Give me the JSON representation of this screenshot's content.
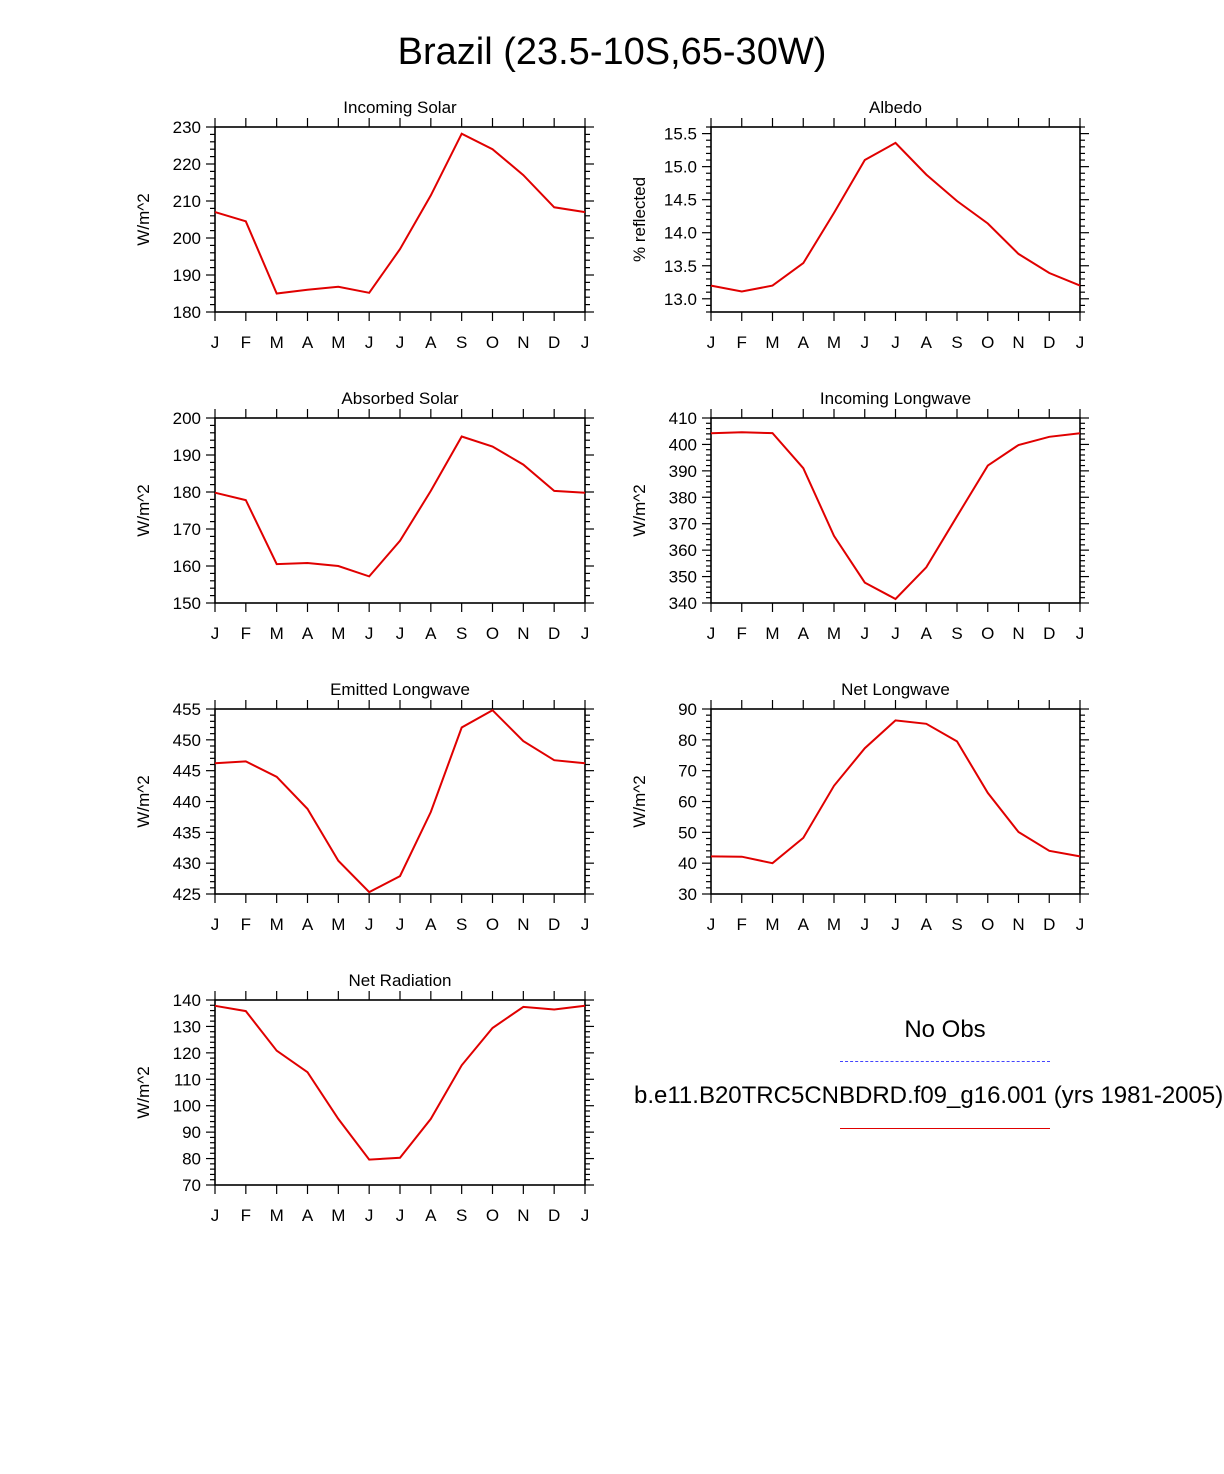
{
  "main_title": "Brazil (23.5-10S,65-30W)",
  "legend": {
    "obs_label": "No Obs",
    "obs_color": "#4444ff",
    "model_label": "b.e11.B20TRC5CNBDRD.f09_g16.001 (yrs 1981-2005)",
    "model_color": "#e00000"
  },
  "chart_data": [
    {
      "type": "line",
      "title": "Incoming Solar",
      "ylabel": "W/m^2",
      "categories": [
        "J",
        "F",
        "M",
        "A",
        "M",
        "J",
        "J",
        "A",
        "S",
        "O",
        "N",
        "D",
        "J"
      ],
      "ylim": [
        180,
        230
      ],
      "yticks": [
        "180",
        "190",
        "200",
        "210",
        "220",
        "230"
      ],
      "series": [
        {
          "values": [
            207,
            204.5,
            185,
            186,
            186.8,
            185.2,
            197,
            211.5,
            228.2,
            224,
            217,
            208.3,
            207
          ]
        }
      ]
    },
    {
      "type": "line",
      "title": "Albedo",
      "ylabel": "% reflected",
      "categories": [
        "J",
        "F",
        "M",
        "A",
        "M",
        "J",
        "J",
        "A",
        "S",
        "O",
        "N",
        "D",
        "J"
      ],
      "ylim": [
        12.8,
        15.6
      ],
      "yticks": [
        "13.0",
        "13.5",
        "14.0",
        "14.5",
        "15.0",
        "15.5"
      ],
      "series": [
        {
          "values": [
            13.2,
            13.11,
            13.2,
            13.54,
            14.3,
            15.1,
            15.36,
            14.88,
            14.48,
            14.14,
            13.68,
            13.39,
            13.2
          ]
        }
      ]
    },
    {
      "type": "line",
      "title": "Absorbed Solar",
      "ylabel": "W/m^2",
      "categories": [
        "J",
        "F",
        "M",
        "A",
        "M",
        "J",
        "J",
        "A",
        "S",
        "O",
        "N",
        "D",
        "J"
      ],
      "ylim": [
        150,
        200
      ],
      "yticks": [
        "150",
        "160",
        "170",
        "180",
        "190",
        "200"
      ],
      "series": [
        {
          "values": [
            179.8,
            177.8,
            160.5,
            160.8,
            160,
            157.2,
            166.8,
            180.3,
            195,
            192.3,
            187.4,
            180.3,
            179.8
          ]
        }
      ]
    },
    {
      "type": "line",
      "title": "Incoming Longwave",
      "ylabel": "W/m^2",
      "categories": [
        "J",
        "F",
        "M",
        "A",
        "M",
        "J",
        "J",
        "A",
        "S",
        "O",
        "N",
        "D",
        "J"
      ],
      "ylim": [
        340,
        410
      ],
      "yticks": [
        "340",
        "350",
        "360",
        "370",
        "380",
        "390",
        "400",
        "410"
      ],
      "series": [
        {
          "values": [
            404.2,
            404.6,
            404.3,
            391,
            365.4,
            347.7,
            341.5,
            353.5,
            372.8,
            392,
            399.8,
            402.9,
            404.2
          ]
        }
      ]
    },
    {
      "type": "line",
      "title": "Emitted Longwave",
      "ylabel": "W/m^2",
      "categories": [
        "J",
        "F",
        "M",
        "A",
        "M",
        "J",
        "J",
        "A",
        "S",
        "O",
        "N",
        "D",
        "J"
      ],
      "ylim": [
        425,
        455
      ],
      "yticks": [
        "425",
        "430",
        "435",
        "440",
        "445",
        "450",
        "455"
      ],
      "series": [
        {
          "values": [
            446.2,
            446.5,
            444,
            438.8,
            430.4,
            425.3,
            427.9,
            438.3,
            452,
            454.8,
            449.8,
            446.7,
            446.2
          ]
        }
      ]
    },
    {
      "type": "line",
      "title": "Net Longwave",
      "ylabel": "W/m^2",
      "categories": [
        "J",
        "F",
        "M",
        "A",
        "M",
        "J",
        "J",
        "A",
        "S",
        "O",
        "N",
        "D",
        "J"
      ],
      "ylim": [
        30,
        90
      ],
      "yticks": [
        "30",
        "40",
        "50",
        "60",
        "70",
        "80",
        "90"
      ],
      "series": [
        {
          "values": [
            42.2,
            42.1,
            40,
            48.2,
            65.1,
            77.3,
            86.3,
            85.2,
            79.5,
            62.8,
            50.1,
            44,
            42.2
          ]
        }
      ]
    },
    {
      "type": "line",
      "title": "Net Radiation",
      "ylabel": "W/m^2",
      "categories": [
        "J",
        "F",
        "M",
        "A",
        "M",
        "J",
        "J",
        "A",
        "S",
        "O",
        "N",
        "D",
        "J"
      ],
      "ylim": [
        70,
        140
      ],
      "yticks": [
        "70",
        "80",
        "90",
        "100",
        "110",
        "120",
        "130",
        "140"
      ],
      "series": [
        {
          "values": [
            137.8,
            135.8,
            120.8,
            112.7,
            95,
            79.6,
            80.3,
            95,
            115.3,
            129.4,
            137.4,
            136.4,
            137.8
          ]
        }
      ]
    }
  ]
}
